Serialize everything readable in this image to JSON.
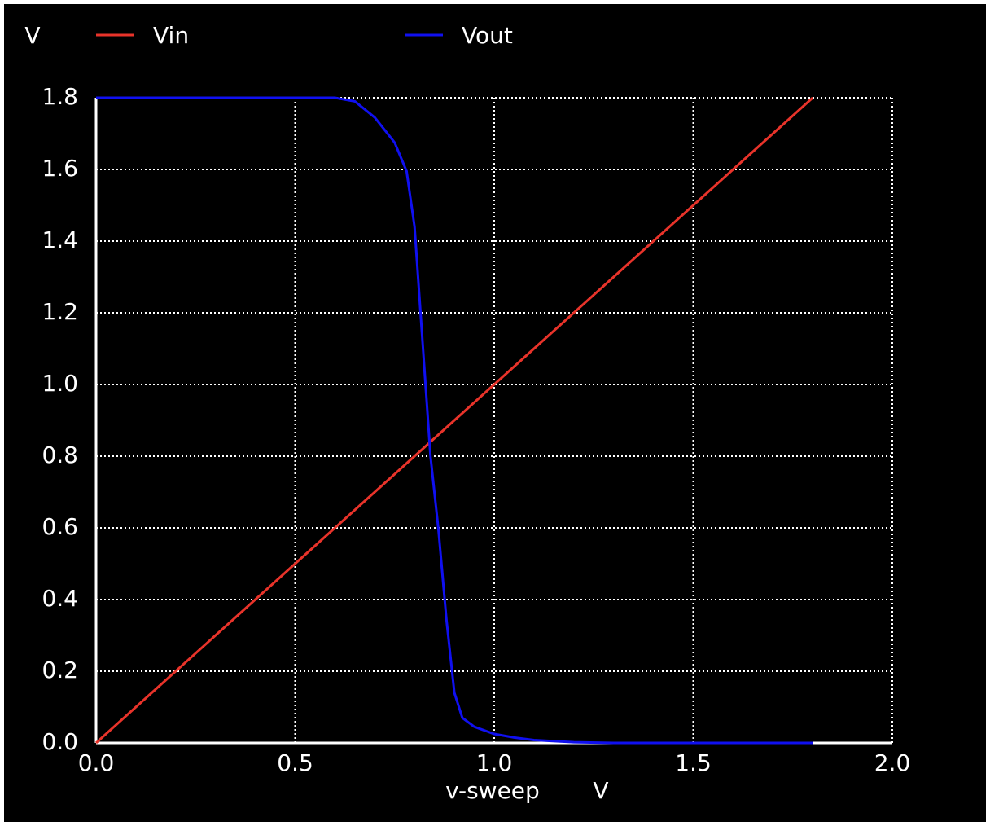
{
  "chart_data": {
    "type": "line",
    "ylabel": "V",
    "xlabel": "v-sweep",
    "xunit": "V",
    "x": [
      0,
      0.1,
      0.2,
      0.3,
      0.4,
      0.5,
      0.55,
      0.6,
      0.65,
      0.7,
      0.75,
      0.78,
      0.8,
      0.82,
      0.84,
      0.86,
      0.88,
      0.9,
      0.92,
      0.95,
      1.0,
      1.05,
      1.1,
      1.2,
      1.3,
      1.4,
      1.5,
      1.6,
      1.7,
      1.8
    ],
    "series": [
      {
        "name": "Vin",
        "color": "#e8332a",
        "values": [
          0,
          0.1,
          0.2,
          0.3,
          0.4,
          0.5,
          0.55,
          0.6,
          0.65,
          0.7,
          0.75,
          0.78,
          0.8,
          0.82,
          0.84,
          0.86,
          0.88,
          0.9,
          0.92,
          0.95,
          1.0,
          1.05,
          1.1,
          1.2,
          1.3,
          1.4,
          1.5,
          1.6,
          1.7,
          1.8
        ]
      },
      {
        "name": "Vout",
        "color": "#1010f0",
        "values": [
          1.8,
          1.8,
          1.8,
          1.8,
          1.8,
          1.8,
          1.8,
          1.8,
          1.79,
          1.745,
          1.675,
          1.595,
          1.44,
          1.12,
          0.8,
          0.595,
          0.345,
          0.14,
          0.07,
          0.045,
          0.025,
          0.015,
          0.008,
          0.002,
          0,
          0,
          0,
          0,
          0,
          0
        ]
      }
    ],
    "xlim": [
      0,
      2
    ],
    "ylim": [
      0,
      1.8
    ],
    "xticks": [
      {
        "value": 0,
        "label": "0.0"
      },
      0.5,
      {
        "value": 1,
        "label": "1.0"
      },
      1.5,
      {
        "value": 2,
        "label": "2.0"
      }
    ],
    "yticks": [
      {
        "value": 0,
        "label": "0.0"
      },
      0.2,
      0.4,
      0.6,
      0.8,
      {
        "value": 1,
        "label": "1.0"
      },
      1.2,
      1.4,
      1.6,
      1.8
    ],
    "grid": true
  }
}
